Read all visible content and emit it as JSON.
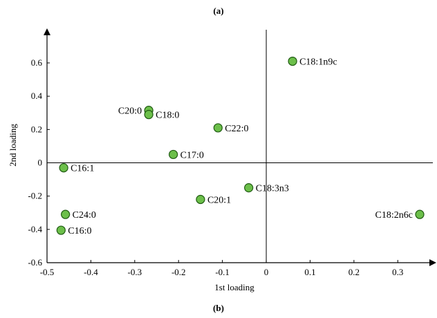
{
  "panel_labels": {
    "top": "(a)",
    "bottom": "(b)"
  },
  "chart_data": {
    "type": "scatter",
    "xlabel": "1st loading",
    "ylabel": "2nd loading",
    "xlim": [
      -0.5,
      0.35
    ],
    "ylim": [
      -0.6,
      0.7
    ],
    "x_ticks": [
      -0.5,
      -0.4,
      -0.3,
      -0.2,
      -0.1,
      0,
      0.1,
      0.2,
      0.3
    ],
    "x_tick_labels": [
      "-0.5",
      "-0.4",
      "-0.3",
      "-0.2",
      "-0.1",
      "0",
      "0.1",
      "0.2",
      "0.3"
    ],
    "y_ticks": [
      -0.6,
      -0.4,
      -0.2,
      0,
      0.2,
      0.4,
      0.6
    ],
    "y_tick_labels": [
      "-0.6",
      "-0.4",
      "-0.2",
      "0",
      "0.2",
      "0.4",
      "0.6"
    ],
    "grid": false,
    "marker_color": "#6cbf4a",
    "marker_edge_color": "#1f5a12",
    "points": [
      {
        "label": "C18:1n9c",
        "x": 0.06,
        "y": 0.61,
        "label_side": "right"
      },
      {
        "label": "C20:0",
        "x": -0.268,
        "y": 0.315,
        "label_side": "left"
      },
      {
        "label": "C18:0",
        "x": -0.268,
        "y": 0.29,
        "label_side": "right"
      },
      {
        "label": "C22:0",
        "x": -0.11,
        "y": 0.21,
        "label_side": "right"
      },
      {
        "label": "C17:0",
        "x": -0.212,
        "y": 0.05,
        "label_side": "right"
      },
      {
        "label": "C16:1",
        "x": -0.462,
        "y": -0.03,
        "label_side": "right"
      },
      {
        "label": "C18:3n3",
        "x": -0.04,
        "y": -0.15,
        "label_side": "right"
      },
      {
        "label": "C20:1",
        "x": -0.15,
        "y": -0.22,
        "label_side": "right"
      },
      {
        "label": "C18:2n6c",
        "x": 0.35,
        "y": -0.31,
        "label_side": "left"
      },
      {
        "label": "C24:0",
        "x": -0.458,
        "y": -0.31,
        "label_side": "right"
      },
      {
        "label": "C16:0",
        "x": -0.468,
        "y": -0.405,
        "label_side": "right"
      }
    ]
  }
}
